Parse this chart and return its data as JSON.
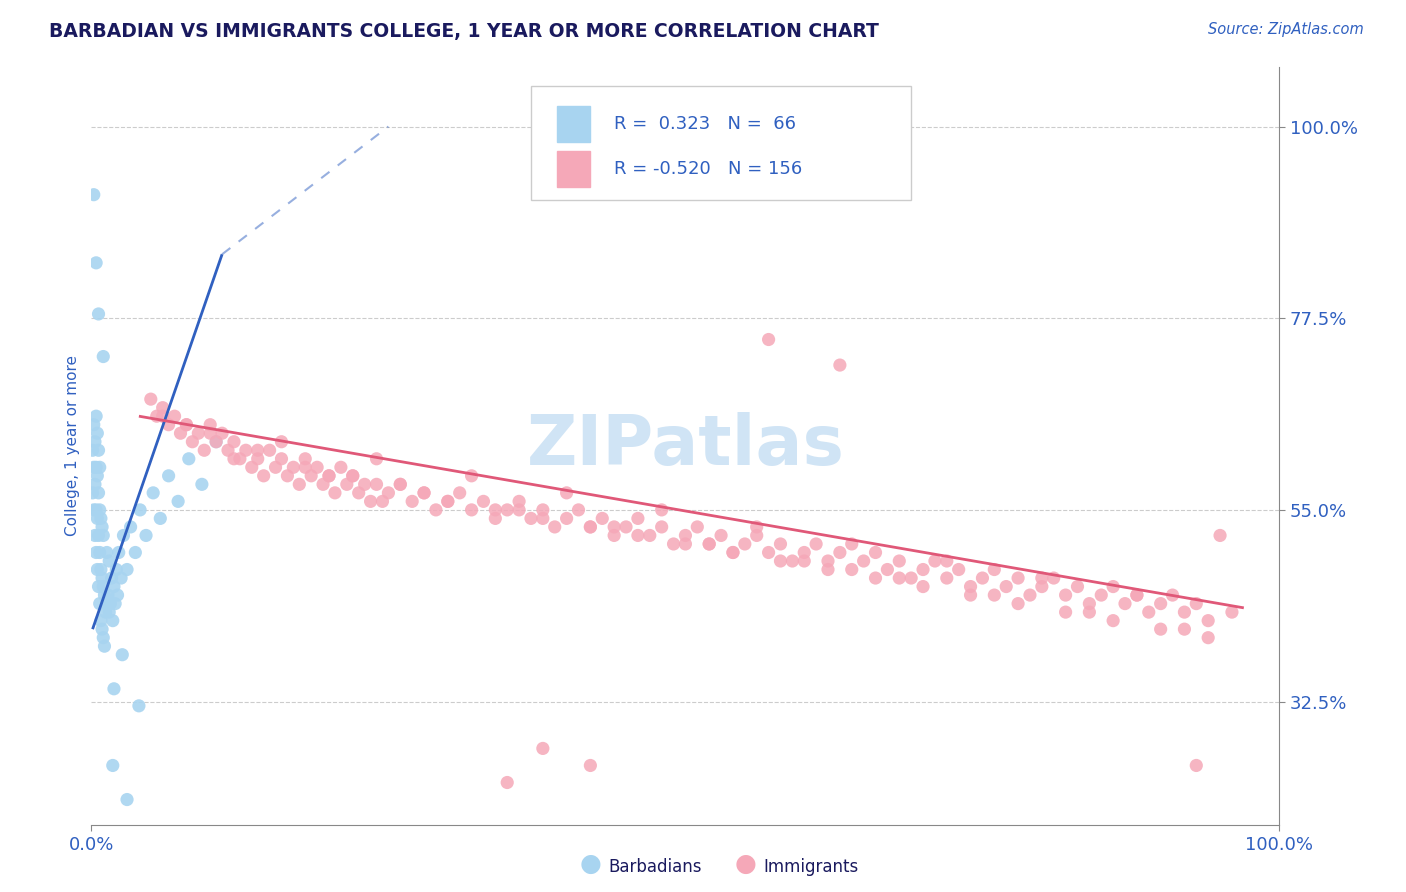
{
  "title": "BARBADIAN VS IMMIGRANTS COLLEGE, 1 YEAR OR MORE CORRELATION CHART",
  "source_text": "Source: ZipAtlas.com",
  "ylabel": "College, 1 year or more",
  "xlim": [
    0.0,
    1.0
  ],
  "ylim": [
    0.18,
    1.07
  ],
  "ytick_labels": [
    "100.0%",
    "77.5%",
    "55.0%",
    "32.5%"
  ],
  "ytick_values": [
    1.0,
    0.775,
    0.55,
    0.325
  ],
  "xtick_positions": [
    0.0,
    1.0
  ],
  "xtick_labels": [
    "0.0%",
    "100.0%"
  ],
  "legend_labels": [
    "Barbadians",
    "Immigrants"
  ],
  "r_barbadians": "0.323",
  "n_barbadians": "66",
  "r_immigrants": "-0.520",
  "n_immigrants": "156",
  "color_barbadians": "#A8D4F0",
  "color_immigrants": "#F5A8B8",
  "line_color_barbadians": "#3060C0",
  "line_color_immigrants": "#E05878",
  "title_color": "#1A1A5E",
  "label_color": "#3060C0",
  "watermark_text": "ZIPatlas",
  "watermark_color": "#D0E4F5",
  "background_color": "#FFFFFF",
  "grid_color": "#CCCCCC",
  "barbadians_x": [
    0.001,
    0.001,
    0.002,
    0.002,
    0.002,
    0.003,
    0.003,
    0.003,
    0.004,
    0.004,
    0.004,
    0.004,
    0.005,
    0.005,
    0.005,
    0.005,
    0.006,
    0.006,
    0.006,
    0.006,
    0.007,
    0.007,
    0.007,
    0.007,
    0.008,
    0.008,
    0.008,
    0.009,
    0.009,
    0.009,
    0.01,
    0.01,
    0.01,
    0.011,
    0.011,
    0.012,
    0.013,
    0.013,
    0.014,
    0.015,
    0.015,
    0.016,
    0.017,
    0.018,
    0.019,
    0.02,
    0.021,
    0.022,
    0.023,
    0.025,
    0.027,
    0.03,
    0.033,
    0.037,
    0.041,
    0.046,
    0.052,
    0.058,
    0.065,
    0.073,
    0.082,
    0.093,
    0.105,
    0.019,
    0.026,
    0.04
  ],
  "barbadians_y": [
    0.57,
    0.62,
    0.55,
    0.6,
    0.65,
    0.52,
    0.58,
    0.63,
    0.5,
    0.55,
    0.6,
    0.66,
    0.48,
    0.54,
    0.59,
    0.64,
    0.46,
    0.52,
    0.57,
    0.62,
    0.44,
    0.5,
    0.55,
    0.6,
    0.42,
    0.48,
    0.54,
    0.41,
    0.47,
    0.53,
    0.4,
    0.46,
    0.52,
    0.39,
    0.45,
    0.43,
    0.44,
    0.5,
    0.45,
    0.43,
    0.49,
    0.44,
    0.47,
    0.42,
    0.46,
    0.44,
    0.48,
    0.45,
    0.5,
    0.47,
    0.52,
    0.48,
    0.53,
    0.5,
    0.55,
    0.52,
    0.57,
    0.54,
    0.59,
    0.56,
    0.61,
    0.58,
    0.63,
    0.34,
    0.38,
    0.32
  ],
  "immigrants_x": [
    0.05,
    0.055,
    0.06,
    0.065,
    0.07,
    0.075,
    0.08,
    0.085,
    0.09,
    0.095,
    0.1,
    0.105,
    0.11,
    0.115,
    0.12,
    0.125,
    0.13,
    0.135,
    0.14,
    0.145,
    0.15,
    0.155,
    0.16,
    0.165,
    0.17,
    0.175,
    0.18,
    0.185,
    0.19,
    0.195,
    0.2,
    0.205,
    0.21,
    0.215,
    0.22,
    0.225,
    0.23,
    0.235,
    0.24,
    0.245,
    0.25,
    0.26,
    0.27,
    0.28,
    0.29,
    0.3,
    0.31,
    0.32,
    0.33,
    0.34,
    0.35,
    0.36,
    0.37,
    0.38,
    0.39,
    0.4,
    0.41,
    0.42,
    0.43,
    0.44,
    0.45,
    0.46,
    0.47,
    0.48,
    0.49,
    0.5,
    0.51,
    0.52,
    0.53,
    0.54,
    0.55,
    0.56,
    0.57,
    0.58,
    0.59,
    0.6,
    0.61,
    0.62,
    0.63,
    0.64,
    0.65,
    0.66,
    0.67,
    0.68,
    0.69,
    0.7,
    0.71,
    0.72,
    0.73,
    0.74,
    0.75,
    0.76,
    0.77,
    0.78,
    0.79,
    0.8,
    0.81,
    0.82,
    0.83,
    0.84,
    0.85,
    0.86,
    0.87,
    0.88,
    0.89,
    0.9,
    0.91,
    0.92,
    0.93,
    0.94,
    0.06,
    0.1,
    0.14,
    0.18,
    0.22,
    0.26,
    0.3,
    0.34,
    0.38,
    0.42,
    0.46,
    0.5,
    0.54,
    0.58,
    0.62,
    0.66,
    0.7,
    0.74,
    0.78,
    0.82,
    0.86,
    0.9,
    0.94,
    0.08,
    0.16,
    0.24,
    0.32,
    0.4,
    0.48,
    0.56,
    0.64,
    0.72,
    0.8,
    0.88,
    0.96,
    0.12,
    0.2,
    0.28,
    0.36,
    0.44,
    0.52,
    0.6,
    0.68,
    0.76,
    0.84,
    0.92
  ],
  "immigrants_y": [
    0.68,
    0.66,
    0.67,
    0.65,
    0.66,
    0.64,
    0.65,
    0.63,
    0.64,
    0.62,
    0.65,
    0.63,
    0.64,
    0.62,
    0.63,
    0.61,
    0.62,
    0.6,
    0.61,
    0.59,
    0.62,
    0.6,
    0.61,
    0.59,
    0.6,
    0.58,
    0.61,
    0.59,
    0.6,
    0.58,
    0.59,
    0.57,
    0.6,
    0.58,
    0.59,
    0.57,
    0.58,
    0.56,
    0.58,
    0.56,
    0.57,
    0.58,
    0.56,
    0.57,
    0.55,
    0.56,
    0.57,
    0.55,
    0.56,
    0.54,
    0.55,
    0.56,
    0.54,
    0.55,
    0.53,
    0.54,
    0.55,
    0.53,
    0.54,
    0.52,
    0.53,
    0.54,
    0.52,
    0.53,
    0.51,
    0.52,
    0.53,
    0.51,
    0.52,
    0.5,
    0.51,
    0.52,
    0.5,
    0.51,
    0.49,
    0.5,
    0.51,
    0.49,
    0.5,
    0.48,
    0.49,
    0.5,
    0.48,
    0.49,
    0.47,
    0.48,
    0.49,
    0.47,
    0.48,
    0.46,
    0.47,
    0.48,
    0.46,
    0.47,
    0.45,
    0.46,
    0.47,
    0.45,
    0.46,
    0.44,
    0.45,
    0.46,
    0.44,
    0.45,
    0.43,
    0.44,
    0.45,
    0.43,
    0.44,
    0.42,
    0.66,
    0.64,
    0.62,
    0.6,
    0.59,
    0.58,
    0.56,
    0.55,
    0.54,
    0.53,
    0.52,
    0.51,
    0.5,
    0.49,
    0.48,
    0.47,
    0.46,
    0.45,
    0.44,
    0.43,
    0.42,
    0.41,
    0.4,
    0.65,
    0.63,
    0.61,
    0.59,
    0.57,
    0.55,
    0.53,
    0.51,
    0.49,
    0.47,
    0.45,
    0.43,
    0.61,
    0.59,
    0.57,
    0.55,
    0.53,
    0.51,
    0.49,
    0.47,
    0.45,
    0.43,
    0.41
  ],
  "imm_outliers_x": [
    0.95,
    0.93,
    0.57,
    0.63,
    0.42,
    0.38,
    0.35
  ],
  "imm_outliers_y": [
    0.52,
    0.25,
    0.75,
    0.72,
    0.25,
    0.27,
    0.23
  ],
  "barb_outliers_x": [
    0.002,
    0.004,
    0.006,
    0.01,
    0.018,
    0.03
  ],
  "barb_outliers_y": [
    0.92,
    0.84,
    0.78,
    0.73,
    0.25,
    0.21
  ],
  "trend_barb_x0": 0.001,
  "trend_barb_x1": 0.11,
  "trend_barb_y0": 0.41,
  "trend_barb_y1": 0.85,
  "trend_barb_dash_x0": 0.11,
  "trend_barb_dash_x1": 0.25,
  "trend_barb_dash_y0": 0.85,
  "trend_barb_dash_y1": 1.0,
  "trend_imm_x0": 0.04,
  "trend_imm_x1": 0.97,
  "trend_imm_y0": 0.66,
  "trend_imm_y1": 0.435
}
